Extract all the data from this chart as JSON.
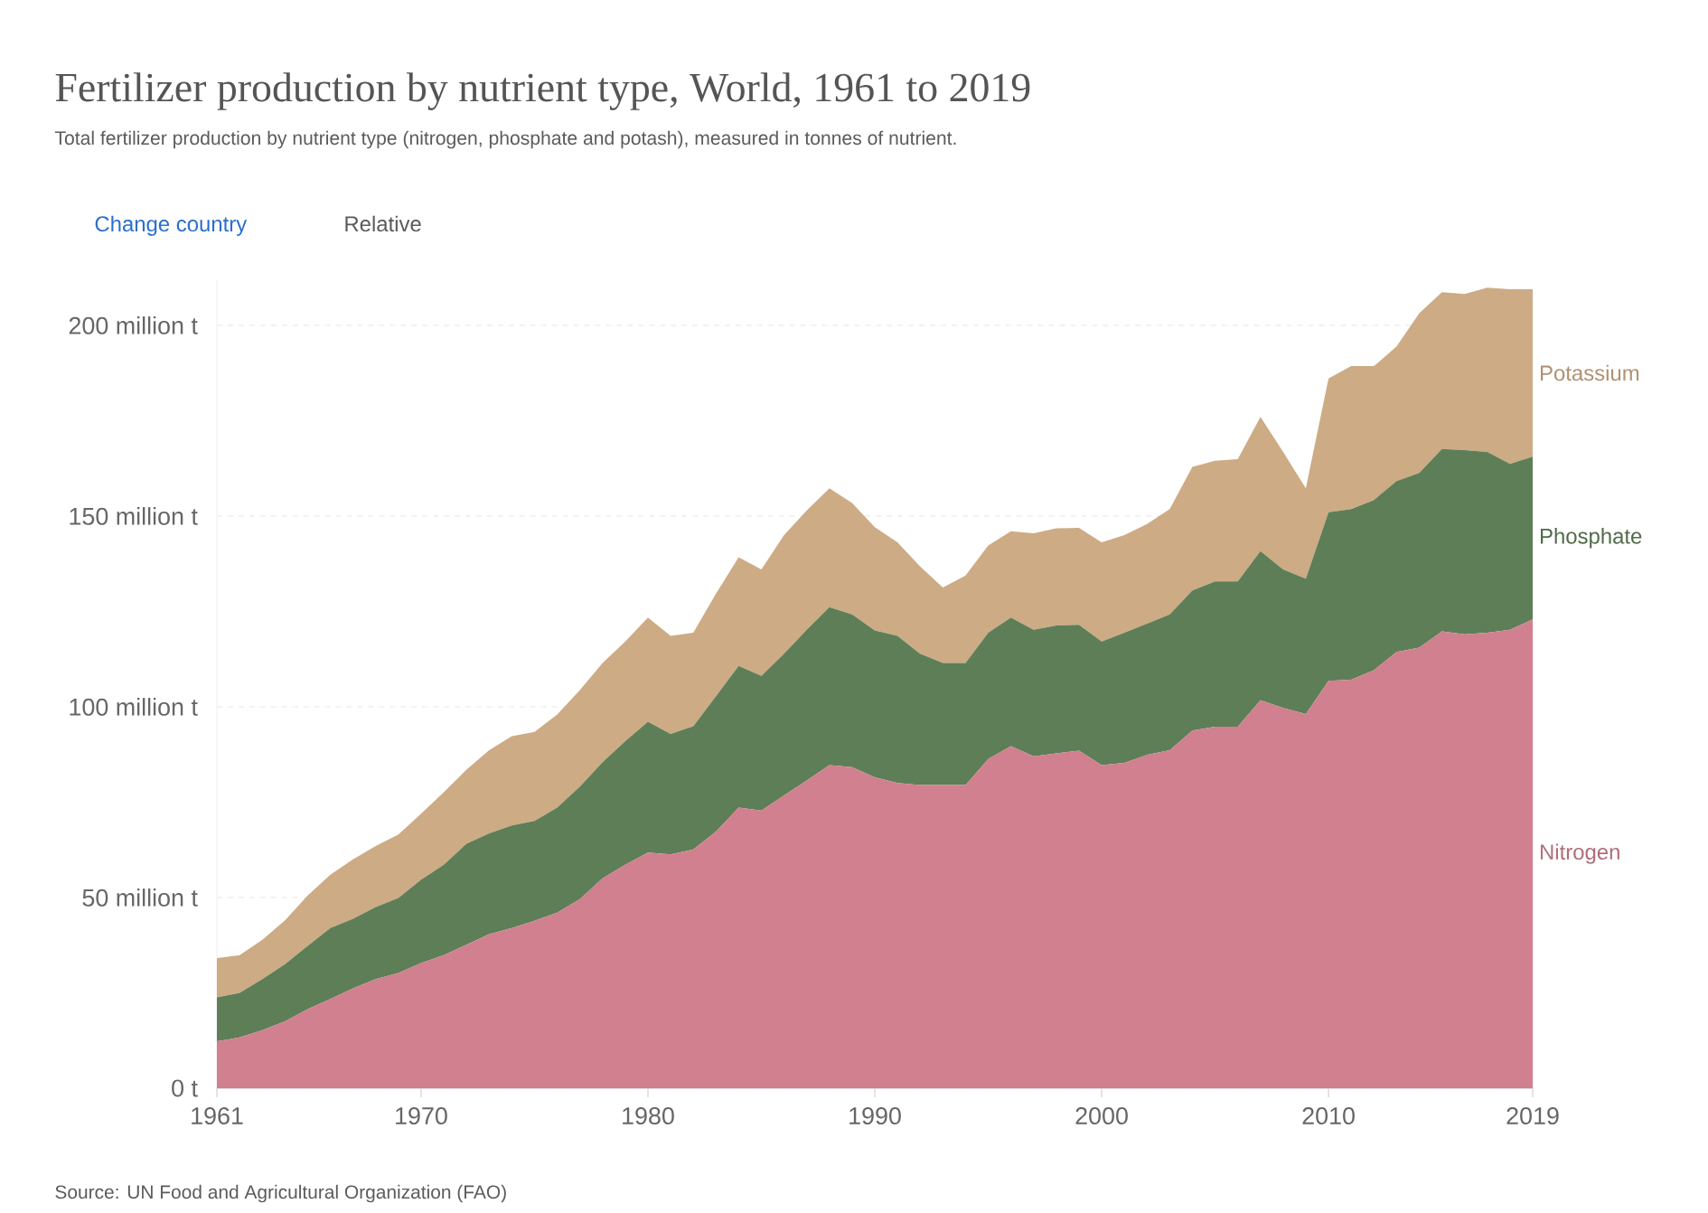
{
  "chart_data": {
    "type": "area",
    "stacked": true,
    "title": "Fertilizer production by nutrient type, World, 1961 to 2019",
    "subtitle": "Total fertilizer production by nutrient type (nitrogen, phosphate and potash), measured in tonnes of nutrient.",
    "annotations": [
      "Change country",
      "Relative",
      "Source: UN Food and Agricultural Organization (FAO)"
    ],
    "x": [
      1961,
      1962,
      1963,
      1964,
      1965,
      1966,
      1967,
      1968,
      1969,
      1970,
      1971,
      1972,
      1973,
      1974,
      1975,
      1976,
      1977,
      1978,
      1979,
      1980,
      1981,
      1982,
      1983,
      1984,
      1985,
      1986,
      1987,
      1988,
      1989,
      1990,
      1991,
      1992,
      1993,
      1994,
      1995,
      1996,
      1997,
      1998,
      1999,
      2000,
      2001,
      2002,
      2003,
      2004,
      2005,
      2006,
      2007,
      2008,
      2009,
      2010,
      2011,
      2012,
      2013,
      2014,
      2015,
      2016,
      2017,
      2018,
      2019
    ],
    "series": [
      {
        "name": "Nitrogen",
        "color": "#d0808e",
        "values": [
          12.3,
          13.3,
          15.2,
          17.5,
          20.7,
          23.4,
          26.2,
          28.6,
          30.2,
          32.8,
          34.9,
          37.6,
          40.4,
          42.0,
          43.9,
          46.0,
          49.6,
          55.0,
          58.6,
          61.8,
          61.3,
          62.6,
          67.3,
          73.6,
          72.8,
          76.8,
          80.7,
          84.7,
          84.2,
          81.5,
          80.0,
          79.5,
          79.5,
          79.5,
          86.3,
          89.7,
          87.0,
          87.8,
          88.5,
          84.7,
          85.3,
          87.4,
          88.6,
          93.8,
          94.8,
          94.8,
          101.7,
          99.7,
          98.1,
          106.8,
          107.1,
          109.6,
          114.4,
          115.5,
          119.8,
          119.0,
          119.4,
          120.2,
          122.9
        ]
      },
      {
        "name": "Phosphate",
        "color": "#5e7e57",
        "values": [
          11.5,
          11.7,
          13.4,
          15.0,
          16.6,
          18.6,
          18.2,
          18.9,
          19.7,
          21.9,
          23.7,
          26.5,
          26.4,
          26.9,
          26.2,
          27.6,
          29.5,
          30.5,
          32.4,
          34.3,
          31.6,
          32.3,
          35.5,
          37.1,
          35.3,
          37.1,
          39.5,
          41.4,
          40.0,
          38.5,
          38.6,
          34.4,
          32.0,
          32.0,
          33.1,
          33.7,
          33.2,
          33.5,
          33.0,
          32.4,
          34.1,
          34.4,
          35.6,
          36.7,
          38.1,
          38.1,
          39.1,
          36.3,
          35.5,
          44.2,
          44.7,
          44.6,
          44.8,
          45.8,
          47.8,
          48.3,
          47.4,
          43.5,
          42.7
        ]
      },
      {
        "name": "Potassium",
        "color": "#cdab85",
        "values": [
          10.3,
          9.9,
          10.3,
          11.5,
          13.2,
          14.0,
          15.6,
          16.0,
          16.6,
          17.3,
          19.0,
          19.4,
          21.8,
          23.4,
          23.3,
          24.4,
          25.3,
          26.0,
          26.1,
          27.3,
          25.7,
          24.5,
          26.9,
          28.5,
          27.9,
          31.1,
          31.3,
          31.2,
          29.2,
          27.1,
          24.5,
          22.9,
          19.8,
          22.9,
          22.9,
          22.6,
          25.3,
          25.5,
          25.4,
          26.0,
          25.6,
          26.1,
          27.6,
          32.4,
          31.6,
          32.0,
          35.2,
          30.8,
          23.7,
          35.1,
          37.5,
          35.1,
          35.3,
          41.9,
          41.1,
          40.9,
          43.1,
          45.8,
          43.9
        ]
      }
    ],
    "xlim": [
      1961,
      2019
    ],
    "xticks": [
      1961,
      1970,
      1980,
      1990,
      2000,
      2010,
      2019
    ],
    "ylim": [
      0,
      212
    ],
    "yticks": [
      {
        "value": 0,
        "label": "0 t"
      },
      {
        "value": 50,
        "label": "50 million t"
      },
      {
        "value": 100,
        "label": "100 million t"
      },
      {
        "value": 150,
        "label": "150 million t"
      },
      {
        "value": 200,
        "label": "200 million t"
      }
    ],
    "grid": "y"
  }
}
